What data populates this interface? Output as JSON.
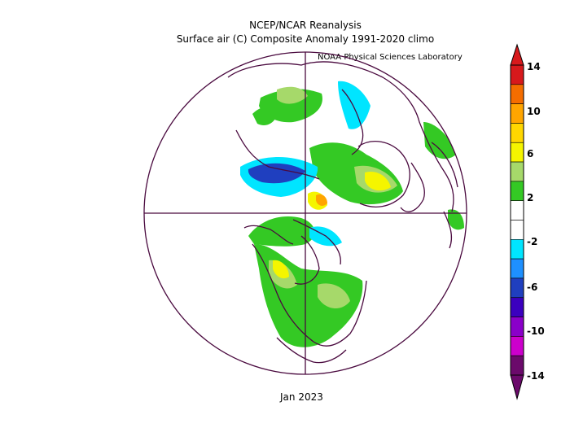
{
  "title_line1": "NCEP/NCAR Reanalysis",
  "title_line2": "Surface air (C) Composite Anomaly 1991-2020 climo",
  "credit": "NOAA Physical Sciences Laboratory",
  "date_label": "Jan 2023",
  "colorbar": {
    "ticks": [
      "14",
      "10",
      "6",
      "2",
      "-2",
      "-6",
      "-10",
      "-14"
    ],
    "colors": [
      "#d7191c",
      "#f46d00",
      "#ffa500",
      "#ffd700",
      "#f5f500",
      "#a6d96a",
      "#34c924",
      "#ffffff",
      "#ffffff",
      "#00e5ff",
      "#1e90ff",
      "#1f3fbf",
      "#3b00bf",
      "#8a00c9",
      "#cc00cc",
      "#6b0a6b"
    ]
  },
  "map": {
    "projection": "north-polar-stereographic",
    "anomaly_colors": {
      "warm_light": "#34c924",
      "warm_mid": "#a6d96a",
      "warm_high": "#f5f500",
      "warm_higher": "#ffa500",
      "cold_light": "#00e5ff",
      "cold_strong": "#1f3fbf"
    }
  }
}
